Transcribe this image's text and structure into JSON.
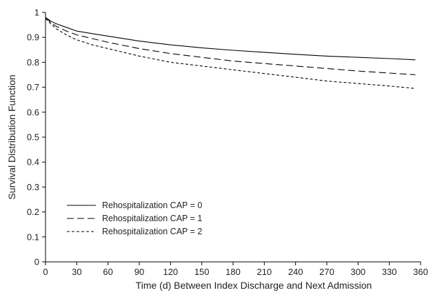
{
  "chart_data": {
    "type": "line",
    "title": "",
    "xlabel": "Time (d) Between Index Discharge and Next Admission",
    "ylabel": "Survival Distribution Function",
    "xlim": [
      0,
      360
    ],
    "ylim": [
      0,
      1
    ],
    "x_ticks": [
      0,
      30,
      60,
      90,
      120,
      150,
      180,
      210,
      240,
      270,
      300,
      330,
      360
    ],
    "y_ticks": [
      0,
      0.1,
      0.2,
      0.3,
      0.4,
      0.5,
      0.6,
      0.7,
      0.8,
      0.9,
      1
    ],
    "y_tick_labels": [
      "0",
      "0.1",
      "0.2",
      "0.3",
      "0.4",
      "0.5",
      "0.6",
      "0.7",
      "0.8",
      "0.9",
      "1"
    ],
    "grid": false,
    "legend_position": "bottom-left",
    "series": [
      {
        "name": "Rehospitalization CAP = 0",
        "line_style": "solid",
        "color": "#000000",
        "x": [
          0,
          5,
          10,
          20,
          30,
          45,
          60,
          90,
          120,
          150,
          180,
          210,
          240,
          270,
          300,
          330,
          355
        ],
        "y": [
          0.98,
          0.965,
          0.955,
          0.94,
          0.925,
          0.915,
          0.905,
          0.885,
          0.87,
          0.858,
          0.848,
          0.84,
          0.832,
          0.825,
          0.82,
          0.815,
          0.81
        ]
      },
      {
        "name": "Rehospitalization CAP = 1",
        "line_style": "dashed",
        "color": "#000000",
        "x": [
          0,
          5,
          10,
          20,
          30,
          45,
          60,
          90,
          120,
          150,
          180,
          210,
          240,
          270,
          300,
          330,
          355
        ],
        "y": [
          0.98,
          0.96,
          0.945,
          0.925,
          0.91,
          0.895,
          0.88,
          0.855,
          0.835,
          0.82,
          0.805,
          0.795,
          0.785,
          0.775,
          0.765,
          0.757,
          0.75
        ]
      },
      {
        "name": "Rehospitalization CAP = 2",
        "line_style": "dotted",
        "color": "#000000",
        "x": [
          0,
          5,
          10,
          20,
          30,
          45,
          60,
          90,
          120,
          150,
          180,
          210,
          240,
          270,
          300,
          330,
          355
        ],
        "y": [
          0.975,
          0.955,
          0.935,
          0.91,
          0.89,
          0.87,
          0.855,
          0.825,
          0.8,
          0.785,
          0.77,
          0.755,
          0.74,
          0.725,
          0.715,
          0.705,
          0.695
        ]
      }
    ]
  }
}
